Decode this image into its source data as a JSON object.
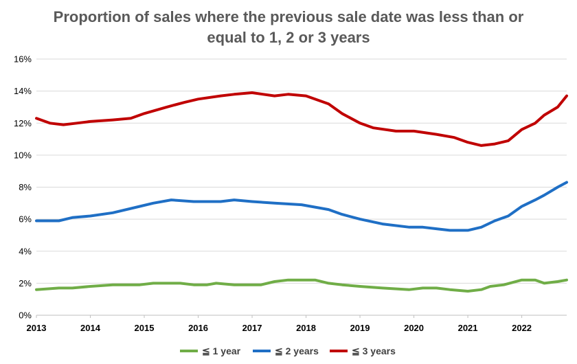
{
  "chart_data": {
    "type": "line",
    "title_lines": [
      "Proportion of sales where the previous sale date was less than or",
      "equal to 1, 2 or 3 years"
    ],
    "xlabel": "",
    "ylabel": "",
    "x_tick_labels": [
      "2013",
      "2014",
      "2015",
      "2016",
      "2017",
      "2018",
      "2019",
      "2020",
      "2021",
      "2022"
    ],
    "y_tick_labels": [
      "0%",
      "2%",
      "4%",
      "6%",
      "8%",
      "10%",
      "12%",
      "14%",
      "16%"
    ],
    "x_range": [
      "2013-01",
      "2022-11"
    ],
    "ylim": [
      0,
      16
    ],
    "y_unit": "%",
    "grid": "horizontal",
    "legend_position": "bottom",
    "series": [
      {
        "name": "≦ 1 year",
        "color": "#70ad47",
        "points": [
          [
            "2013-01",
            1.6
          ],
          [
            "2013-06",
            1.7
          ],
          [
            "2013-09",
            1.7
          ],
          [
            "2014-01",
            1.8
          ],
          [
            "2014-06",
            1.9
          ],
          [
            "2014-12",
            1.9
          ],
          [
            "2015-03",
            2.0
          ],
          [
            "2015-09",
            2.0
          ],
          [
            "2015-12",
            1.9
          ],
          [
            "2016-03",
            1.9
          ],
          [
            "2016-05",
            2.0
          ],
          [
            "2016-09",
            1.9
          ],
          [
            "2017-03",
            1.9
          ],
          [
            "2017-06",
            2.1
          ],
          [
            "2017-09",
            2.2
          ],
          [
            "2018-03",
            2.2
          ],
          [
            "2018-06",
            2.0
          ],
          [
            "2018-09",
            1.9
          ],
          [
            "2019-01",
            1.8
          ],
          [
            "2019-06",
            1.7
          ],
          [
            "2019-12",
            1.6
          ],
          [
            "2020-03",
            1.7
          ],
          [
            "2020-06",
            1.7
          ],
          [
            "2020-09",
            1.6
          ],
          [
            "2021-01",
            1.5
          ],
          [
            "2021-04",
            1.6
          ],
          [
            "2021-06",
            1.8
          ],
          [
            "2021-09",
            1.9
          ],
          [
            "2022-01",
            2.2
          ],
          [
            "2022-04",
            2.2
          ],
          [
            "2022-06",
            2.0
          ],
          [
            "2022-09",
            2.1
          ],
          [
            "2022-11",
            2.2
          ]
        ]
      },
      {
        "name": "≦ 2 years",
        "color": "#1f6fc5",
        "points": [
          [
            "2013-01",
            5.9
          ],
          [
            "2013-06",
            5.9
          ],
          [
            "2013-09",
            6.1
          ],
          [
            "2014-01",
            6.2
          ],
          [
            "2014-06",
            6.4
          ],
          [
            "2014-12",
            6.8
          ],
          [
            "2015-03",
            7.0
          ],
          [
            "2015-07",
            7.2
          ],
          [
            "2015-12",
            7.1
          ],
          [
            "2016-06",
            7.1
          ],
          [
            "2016-09",
            7.2
          ],
          [
            "2017-01",
            7.1
          ],
          [
            "2017-06",
            7.0
          ],
          [
            "2017-12",
            6.9
          ],
          [
            "2018-06",
            6.6
          ],
          [
            "2018-09",
            6.3
          ],
          [
            "2019-01",
            6.0
          ],
          [
            "2019-06",
            5.7
          ],
          [
            "2019-12",
            5.5
          ],
          [
            "2020-03",
            5.5
          ],
          [
            "2020-06",
            5.4
          ],
          [
            "2020-09",
            5.3
          ],
          [
            "2021-01",
            5.3
          ],
          [
            "2021-04",
            5.5
          ],
          [
            "2021-07",
            5.9
          ],
          [
            "2021-10",
            6.2
          ],
          [
            "2022-01",
            6.8
          ],
          [
            "2022-04",
            7.2
          ],
          [
            "2022-06",
            7.5
          ],
          [
            "2022-09",
            8.0
          ],
          [
            "2022-11",
            8.3
          ]
        ]
      },
      {
        "name": "≦ 3 years",
        "color": "#c00000",
        "points": [
          [
            "2013-01",
            12.3
          ],
          [
            "2013-04",
            12.0
          ],
          [
            "2013-07",
            11.9
          ],
          [
            "2013-10",
            12.0
          ],
          [
            "2014-01",
            12.1
          ],
          [
            "2014-06",
            12.2
          ],
          [
            "2014-10",
            12.3
          ],
          [
            "2015-01",
            12.6
          ],
          [
            "2015-06",
            13.0
          ],
          [
            "2015-10",
            13.3
          ],
          [
            "2016-01",
            13.5
          ],
          [
            "2016-06",
            13.7
          ],
          [
            "2016-09",
            13.8
          ],
          [
            "2017-01",
            13.9
          ],
          [
            "2017-06",
            13.7
          ],
          [
            "2017-09",
            13.8
          ],
          [
            "2018-01",
            13.7
          ],
          [
            "2018-06",
            13.2
          ],
          [
            "2018-09",
            12.6
          ],
          [
            "2019-01",
            12.0
          ],
          [
            "2019-04",
            11.7
          ],
          [
            "2019-09",
            11.5
          ],
          [
            "2020-01",
            11.5
          ],
          [
            "2020-06",
            11.3
          ],
          [
            "2020-10",
            11.1
          ],
          [
            "2021-01",
            10.8
          ],
          [
            "2021-04",
            10.6
          ],
          [
            "2021-07",
            10.7
          ],
          [
            "2021-10",
            10.9
          ],
          [
            "2022-01",
            11.6
          ],
          [
            "2022-04",
            12.0
          ],
          [
            "2022-06",
            12.5
          ],
          [
            "2022-09",
            13.0
          ],
          [
            "2022-11",
            13.7
          ]
        ]
      }
    ]
  }
}
